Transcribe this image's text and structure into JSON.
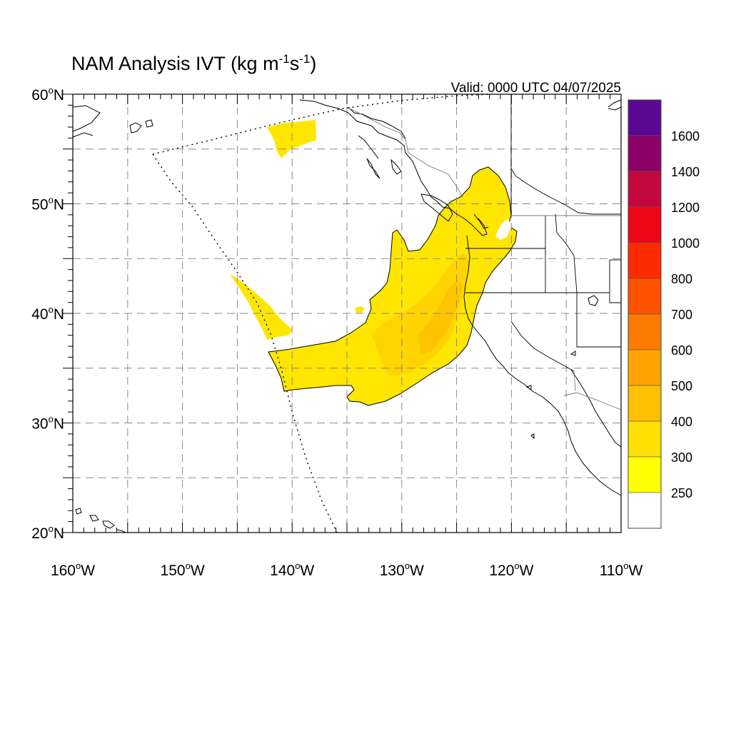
{
  "title_main": "NAM Analysis IVT (kg m",
  "title_sup1": "-1",
  "title_mid": "s",
  "title_sup2": "-1",
  "title_close": ")",
  "valid_label": "Valid: 0000 UTC 04/07/2025",
  "map": {
    "lon_min": -160,
    "lon_max": -110,
    "lat_min": 20,
    "lat_max": 60,
    "lat_labels": [
      {
        "lat": 60,
        "num": "60",
        "unit": "N"
      },
      {
        "lat": 50,
        "num": "50",
        "unit": "N"
      },
      {
        "lat": 40,
        "num": "40",
        "unit": "N"
      },
      {
        "lat": 30,
        "num": "30",
        "unit": "N"
      },
      {
        "lat": 20,
        "num": "20",
        "unit": "N"
      }
    ],
    "lon_labels": [
      {
        "lon": -160,
        "num": "160",
        "unit": "W"
      },
      {
        "lon": -150,
        "num": "150",
        "unit": "W"
      },
      {
        "lon": -140,
        "num": "140",
        "unit": "W"
      },
      {
        "lon": -130,
        "num": "130",
        "unit": "W"
      },
      {
        "lon": -120,
        "num": "120",
        "unit": "W"
      },
      {
        "lon": -110,
        "num": "110",
        "unit": "W"
      }
    ]
  },
  "colorbar": {
    "labels": [
      "1600",
      "1400",
      "1200",
      "1000",
      "800",
      "700",
      "600",
      "500",
      "400",
      "300",
      "250"
    ],
    "colors": [
      "#5a0893",
      "#8c0068",
      "#c2083f",
      "#ec0616",
      "#ff2b00",
      "#ff5200",
      "#ff7a00",
      "#ffa300",
      "#ffc000",
      "#ffe000",
      "#ffff00",
      "#ffffff"
    ]
  },
  "fills": {
    "ivt_250": "#ffe600",
    "ivt_300": "#ffd400",
    "ivt_400": "#ffc400"
  }
}
